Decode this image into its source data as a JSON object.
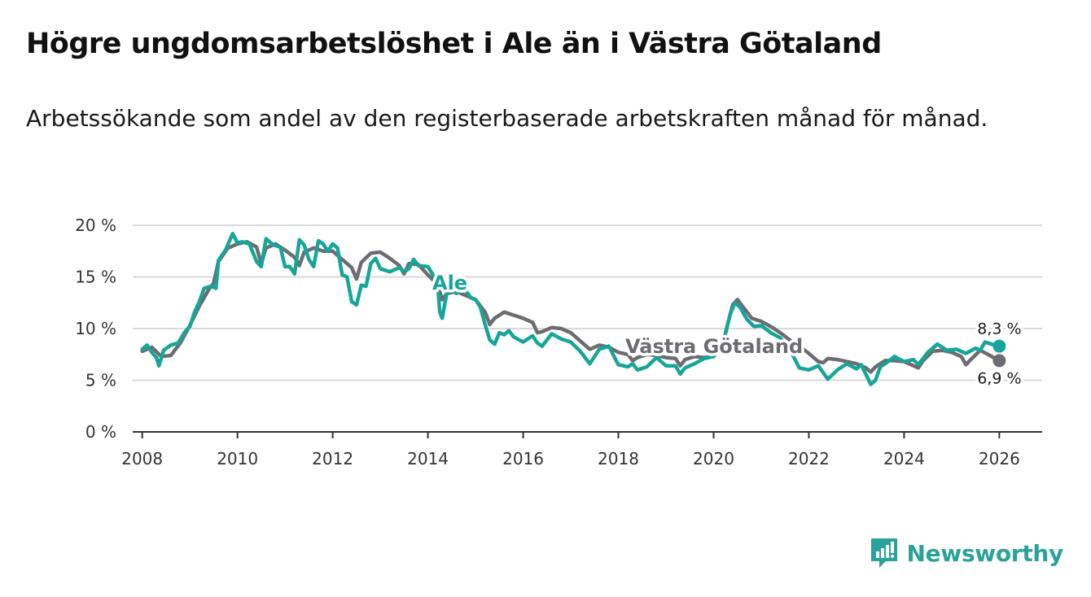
{
  "header": {
    "title": "Högre ungdomsarbetslöshet i Ale än i Västra Götaland",
    "subtitle": "Arbetssökande som andel av den registerbaserade arbetskraften månad för månad."
  },
  "brand": {
    "name": "Newsworthy",
    "icon": "newsworthy-logo-icon",
    "color": "#2ba39a"
  },
  "colors": {
    "ale": "#17a59a",
    "vg": "#6d6d71",
    "grid": "#d9d9d9",
    "axis": "#333333"
  },
  "chart_data": {
    "type": "line",
    "title": "Högre ungdomsarbetslöshet i Ale än i Västra Götaland",
    "xlabel": "",
    "ylabel": "",
    "xlim": [
      2007.8,
      2026.9
    ],
    "ylim": [
      0,
      20
    ],
    "yticks": [
      0,
      5,
      10,
      15,
      20
    ],
    "ytick_labels": [
      "0 %",
      "5 %",
      "10 %",
      "15 %",
      "20 %"
    ],
    "xticks": [
      2008,
      2010,
      2012,
      2014,
      2016,
      2018,
      2020,
      2022,
      2024,
      2026
    ],
    "xtick_labels": [
      "2008",
      "2010",
      "2012",
      "2014",
      "2016",
      "2018",
      "2020",
      "2022",
      "2024",
      "2026"
    ],
    "grid": true,
    "series": [
      {
        "name": "Västra Götaland",
        "label": "Västra Götaland",
        "end_label": "6,9 %",
        "points": [
          [
            2008.0,
            7.8
          ],
          [
            2008.2,
            8.2
          ],
          [
            2008.4,
            7.3
          ],
          [
            2008.6,
            7.4
          ],
          [
            2008.8,
            8.6
          ],
          [
            2009.0,
            10.3
          ],
          [
            2009.2,
            12.2
          ],
          [
            2009.4,
            13.8
          ],
          [
            2009.5,
            14.4
          ],
          [
            2009.6,
            16.5
          ],
          [
            2009.8,
            17.8
          ],
          [
            2010.0,
            18.2
          ],
          [
            2010.2,
            18.4
          ],
          [
            2010.4,
            17.9
          ],
          [
            2010.5,
            16.3
          ],
          [
            2010.6,
            17.8
          ],
          [
            2010.8,
            18.2
          ],
          [
            2011.0,
            17.6
          ],
          [
            2011.2,
            16.9
          ],
          [
            2011.3,
            16.1
          ],
          [
            2011.4,
            17.4
          ],
          [
            2011.6,
            17.8
          ],
          [
            2011.8,
            17.5
          ],
          [
            2012.0,
            17.5
          ],
          [
            2012.2,
            16.7
          ],
          [
            2012.4,
            15.9
          ],
          [
            2012.5,
            14.8
          ],
          [
            2012.6,
            16.4
          ],
          [
            2012.8,
            17.3
          ],
          [
            2013.0,
            17.4
          ],
          [
            2013.2,
            16.8
          ],
          [
            2013.4,
            16.1
          ],
          [
            2013.5,
            15.3
          ],
          [
            2013.6,
            16.3
          ],
          [
            2013.8,
            16.2
          ],
          [
            2014.0,
            15.2
          ],
          [
            2014.2,
            14.3
          ],
          [
            2014.3,
            12.8
          ],
          [
            2014.4,
            13.4
          ],
          [
            2014.6,
            13.6
          ],
          [
            2014.8,
            13.2
          ],
          [
            2015.0,
            12.8
          ],
          [
            2015.2,
            11.6
          ],
          [
            2015.3,
            10.4
          ],
          [
            2015.4,
            11.0
          ],
          [
            2015.6,
            11.6
          ],
          [
            2015.8,
            11.3
          ],
          [
            2016.0,
            11.0
          ],
          [
            2016.2,
            10.6
          ],
          [
            2016.3,
            9.6
          ],
          [
            2016.4,
            9.7
          ],
          [
            2016.6,
            10.1
          ],
          [
            2016.8,
            10.0
          ],
          [
            2017.0,
            9.6
          ],
          [
            2017.2,
            8.8
          ],
          [
            2017.4,
            8.0
          ],
          [
            2017.6,
            8.4
          ],
          [
            2017.8,
            8.2
          ],
          [
            2018.0,
            7.7
          ],
          [
            2018.2,
            7.5
          ],
          [
            2018.3,
            6.9
          ],
          [
            2018.4,
            7.2
          ],
          [
            2018.6,
            7.5
          ],
          [
            2018.8,
            7.4
          ],
          [
            2019.0,
            7.2
          ],
          [
            2019.2,
            7.1
          ],
          [
            2019.3,
            6.4
          ],
          [
            2019.4,
            7.0
          ],
          [
            2019.6,
            7.3
          ],
          [
            2019.8,
            7.2
          ],
          [
            2020.0,
            7.3
          ],
          [
            2020.2,
            8.6
          ],
          [
            2020.3,
            10.5
          ],
          [
            2020.4,
            12.3
          ],
          [
            2020.5,
            12.8
          ],
          [
            2020.6,
            12.2
          ],
          [
            2020.8,
            11.0
          ],
          [
            2021.0,
            10.7
          ],
          [
            2021.2,
            10.2
          ],
          [
            2021.4,
            9.6
          ],
          [
            2021.6,
            8.9
          ],
          [
            2021.8,
            8.3
          ],
          [
            2022.0,
            7.6
          ],
          [
            2022.2,
            6.8
          ],
          [
            2022.3,
            6.7
          ],
          [
            2022.4,
            7.1
          ],
          [
            2022.6,
            7.0
          ],
          [
            2022.8,
            6.8
          ],
          [
            2023.0,
            6.6
          ],
          [
            2023.2,
            6.2
          ],
          [
            2023.3,
            5.8
          ],
          [
            2023.4,
            6.3
          ],
          [
            2023.6,
            6.9
          ],
          [
            2023.8,
            6.9
          ],
          [
            2024.0,
            6.8
          ],
          [
            2024.2,
            6.4
          ],
          [
            2024.3,
            6.2
          ],
          [
            2024.4,
            6.9
          ],
          [
            2024.6,
            7.8
          ],
          [
            2024.8,
            7.9
          ],
          [
            2025.0,
            7.7
          ],
          [
            2025.2,
            7.3
          ],
          [
            2025.3,
            6.5
          ],
          [
            2025.4,
            7.0
          ],
          [
            2025.6,
            7.9
          ],
          [
            2025.8,
            7.4
          ],
          [
            2026.0,
            6.9
          ]
        ]
      },
      {
        "name": "Ale",
        "label": "Ale",
        "end_label": "8,3 %",
        "points": [
          [
            2008.0,
            8.0
          ],
          [
            2008.1,
            8.4
          ],
          [
            2008.2,
            7.7
          ],
          [
            2008.3,
            7.2
          ],
          [
            2008.35,
            6.4
          ],
          [
            2008.45,
            7.9
          ],
          [
            2008.6,
            8.4
          ],
          [
            2008.75,
            8.6
          ],
          [
            2008.9,
            9.7
          ],
          [
            2009.0,
            10.2
          ],
          [
            2009.1,
            11.6
          ],
          [
            2009.2,
            12.6
          ],
          [
            2009.3,
            13.9
          ],
          [
            2009.45,
            14.1
          ],
          [
            2009.55,
            13.9
          ],
          [
            2009.6,
            16.6
          ],
          [
            2009.75,
            17.6
          ],
          [
            2009.9,
            19.2
          ],
          [
            2010.0,
            18.3
          ],
          [
            2010.1,
            18.4
          ],
          [
            2010.25,
            18.2
          ],
          [
            2010.4,
            16.5
          ],
          [
            2010.5,
            16.0
          ],
          [
            2010.6,
            18.7
          ],
          [
            2010.75,
            18.1
          ],
          [
            2010.9,
            17.9
          ],
          [
            2011.0,
            16.0
          ],
          [
            2011.1,
            16.0
          ],
          [
            2011.2,
            15.3
          ],
          [
            2011.3,
            18.6
          ],
          [
            2011.4,
            18.1
          ],
          [
            2011.5,
            16.7
          ],
          [
            2011.6,
            16.0
          ],
          [
            2011.7,
            18.5
          ],
          [
            2011.8,
            18.2
          ],
          [
            2011.9,
            17.5
          ],
          [
            2012.0,
            18.2
          ],
          [
            2012.1,
            17.8
          ],
          [
            2012.2,
            15.2
          ],
          [
            2012.3,
            15.0
          ],
          [
            2012.4,
            12.6
          ],
          [
            2012.5,
            12.3
          ],
          [
            2012.6,
            14.2
          ],
          [
            2012.7,
            14.1
          ],
          [
            2012.8,
            16.3
          ],
          [
            2012.9,
            16.8
          ],
          [
            2013.0,
            15.8
          ],
          [
            2013.2,
            15.5
          ],
          [
            2013.4,
            15.9
          ],
          [
            2013.5,
            15.5
          ],
          [
            2013.6,
            15.8
          ],
          [
            2013.7,
            16.7
          ],
          [
            2013.8,
            16.1
          ],
          [
            2014.0,
            16.0
          ],
          [
            2014.2,
            14.5
          ],
          [
            2014.25,
            11.6
          ],
          [
            2014.3,
            11.0
          ],
          [
            2014.4,
            13.5
          ],
          [
            2014.5,
            13.7
          ],
          [
            2014.6,
            13.4
          ],
          [
            2014.75,
            14.0
          ],
          [
            2014.9,
            13.0
          ],
          [
            2015.0,
            12.8
          ],
          [
            2015.1,
            12.1
          ],
          [
            2015.2,
            10.4
          ],
          [
            2015.3,
            8.9
          ],
          [
            2015.4,
            8.5
          ],
          [
            2015.5,
            9.6
          ],
          [
            2015.6,
            9.4
          ],
          [
            2015.7,
            9.8
          ],
          [
            2015.8,
            9.2
          ],
          [
            2016.0,
            8.7
          ],
          [
            2016.2,
            9.3
          ],
          [
            2016.3,
            8.6
          ],
          [
            2016.4,
            8.3
          ],
          [
            2016.6,
            9.5
          ],
          [
            2016.8,
            9.0
          ],
          [
            2017.0,
            8.7
          ],
          [
            2017.2,
            7.8
          ],
          [
            2017.4,
            6.6
          ],
          [
            2017.6,
            8.0
          ],
          [
            2017.8,
            8.3
          ],
          [
            2018.0,
            6.5
          ],
          [
            2018.2,
            6.3
          ],
          [
            2018.3,
            6.6
          ],
          [
            2018.4,
            6.0
          ],
          [
            2018.6,
            6.3
          ],
          [
            2018.8,
            7.2
          ],
          [
            2019.0,
            6.4
          ],
          [
            2019.2,
            6.4
          ],
          [
            2019.3,
            5.6
          ],
          [
            2019.4,
            6.2
          ],
          [
            2019.6,
            6.6
          ],
          [
            2019.8,
            7.1
          ],
          [
            2020.0,
            7.3
          ],
          [
            2020.2,
            8.6
          ],
          [
            2020.35,
            11.4
          ],
          [
            2020.45,
            12.5
          ],
          [
            2020.55,
            12.1
          ],
          [
            2020.7,
            10.9
          ],
          [
            2020.85,
            10.2
          ],
          [
            2021.0,
            10.3
          ],
          [
            2021.2,
            9.6
          ],
          [
            2021.4,
            9.1
          ],
          [
            2021.6,
            8.0
          ],
          [
            2021.8,
            6.2
          ],
          [
            2022.0,
            6.0
          ],
          [
            2022.2,
            6.4
          ],
          [
            2022.4,
            5.1
          ],
          [
            2022.6,
            6.0
          ],
          [
            2022.8,
            6.6
          ],
          [
            2023.0,
            6.1
          ],
          [
            2023.1,
            6.5
          ],
          [
            2023.3,
            4.6
          ],
          [
            2023.4,
            5.0
          ],
          [
            2023.5,
            6.3
          ],
          [
            2023.6,
            6.6
          ],
          [
            2023.8,
            7.3
          ],
          [
            2024.0,
            6.8
          ],
          [
            2024.2,
            7.0
          ],
          [
            2024.3,
            6.5
          ],
          [
            2024.5,
            7.7
          ],
          [
            2024.7,
            8.5
          ],
          [
            2024.9,
            7.9
          ],
          [
            2025.1,
            8.0
          ],
          [
            2025.3,
            7.6
          ],
          [
            2025.5,
            8.1
          ],
          [
            2025.6,
            7.9
          ],
          [
            2025.7,
            8.7
          ],
          [
            2025.9,
            8.4
          ],
          [
            2026.0,
            8.3
          ]
        ]
      }
    ]
  }
}
